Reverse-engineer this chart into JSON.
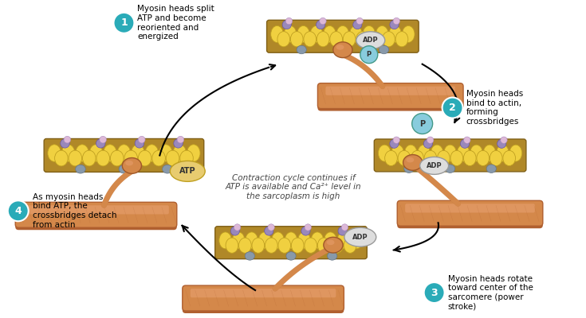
{
  "background_color": "#ffffff",
  "actin_body_color": "#C8A020",
  "actin_blob_color": "#F0D040",
  "actin_blob_outline": "#C0A020",
  "actin_strand_color": "#B08828",
  "myosin_tube_color": "#D4884A",
  "myosin_tube_dark": "#B06030",
  "myosin_tube_light": "#E8A070",
  "myosin_head_color": "#D4884A",
  "myosin_head_dark": "#A05828",
  "step_circle_color": "#2AABB8",
  "step_number_color": "#ffffff",
  "arrow_color": "#111111",
  "adp_color": "#DDDDDD",
  "adp_outline": "#999999",
  "atp_color": "#E8CC70",
  "atp_outline": "#C0A020",
  "p_color": "#88CCDD",
  "p_outline": "#449988",
  "purple_dot_color": "#9988BB",
  "purple_dot_outline": "#6655AA",
  "gray_dot_color": "#8899AA",
  "gray_dot_outline": "#667788",
  "center_text": "Contraction cycle continues if\nATP is available and Ca²⁺ level in\nthe sarcoplasm is high",
  "step1_text": "Myosin heads split\nATP and become\nreoriented and\nenergized",
  "step2_text": "Myosin heads\nbind to actin,\nforming\ncrossbridges",
  "step3_text": "Myosin heads rotate\ntoward center of the\nsarcomere (power\nstroke)",
  "step4_text": "As myosin heads\nbind ATP, the\ncrossbridges detach\nfrom actin"
}
